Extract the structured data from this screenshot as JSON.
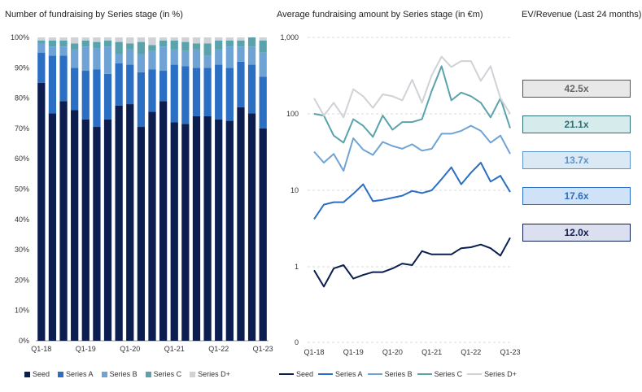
{
  "titles": {
    "left": "Number of fundraising by Series stage (in %)",
    "mid": "Average fundraising amount by Series stage (in €m)",
    "right": "EV/Revenue (Last 24 months)"
  },
  "colors": {
    "Seed": "#0b1e4f",
    "Series A": "#2a6fc4",
    "Series B": "#6fa3d6",
    "Series C": "#5aa3ad",
    "Series D+": "#cfd2d6"
  },
  "ev_revenue": [
    {
      "series": "Series D+",
      "label": "42.5x",
      "bg": "#e8e8e8",
      "fg": "#666666"
    },
    {
      "series": "Series C",
      "label": "21.1x",
      "bg": "#d6ecec",
      "fg": "#2e6e76"
    },
    {
      "series": "Series B",
      "label": "13.7x",
      "bg": "#dbe9f5",
      "fg": "#5b92c9"
    },
    {
      "series": "Series A",
      "label": "17.6x",
      "bg": "#cfe2f7",
      "fg": "#2a6fc4"
    },
    {
      "series": "Seed",
      "label": "12.0x",
      "bg": "#dcdff0",
      "fg": "#0b1e4f"
    }
  ],
  "chart_data": [
    {
      "type": "bar",
      "stacked": true,
      "title": "Number of fundraising by Series stage (in %)",
      "x_ticks": [
        "Q1-18",
        "Q1-19",
        "Q1-20",
        "Q1-21",
        "Q1-22",
        "Q1-23"
      ],
      "categories": [
        "Q1-18",
        "Q2-18",
        "Q3-18",
        "Q4-18",
        "Q1-19",
        "Q2-19",
        "Q3-19",
        "Q4-19",
        "Q1-20",
        "Q2-20",
        "Q3-20",
        "Q4-20",
        "Q1-21",
        "Q2-21",
        "Q3-21",
        "Q4-21",
        "Q1-22",
        "Q2-22",
        "Q3-22",
        "Q4-22",
        "Q1-23"
      ],
      "y_ticks": [
        "0%",
        "10%",
        "20%",
        "30%",
        "40%",
        "50%",
        "60%",
        "70%",
        "80%",
        "90%",
        "100%"
      ],
      "ylim": [
        0,
        100
      ],
      "series": [
        {
          "name": "Seed",
          "values": [
            85,
            75,
            79,
            76,
            73,
            70.5,
            73,
            77.5,
            78,
            70.5,
            75.5,
            79,
            72,
            71.5,
            74,
            74,
            73,
            72.5,
            77,
            75,
            70
          ]
        },
        {
          "name": "Series A",
          "values": [
            10,
            19,
            15,
            14,
            16,
            19,
            15,
            14,
            13,
            18,
            14,
            10,
            19,
            19,
            16,
            16,
            18,
            17.5,
            15,
            16,
            17
          ]
        },
        {
          "name": "Series B",
          "values": [
            3,
            3,
            3,
            6,
            8,
            7,
            9,
            3,
            5,
            6,
            6,
            8,
            5,
            5,
            6,
            4,
            5,
            7,
            5,
            6,
            8
          ]
        },
        {
          "name": "Series C",
          "values": [
            1,
            2,
            2,
            2,
            2,
            2,
            2,
            4,
            2,
            4,
            2,
            2,
            3,
            3,
            2,
            4,
            3,
            2,
            2,
            3,
            4
          ]
        },
        {
          "name": "Series D+",
          "values": [
            1,
            1,
            1,
            2,
            1,
            1.5,
            1,
            1.5,
            2,
            1.5,
            2.5,
            1,
            1,
            1.5,
            2,
            2,
            1,
            1,
            1,
            0,
            1
          ]
        }
      ]
    },
    {
      "type": "line",
      "title": "Average fundraising amount by Series stage (in €m)",
      "yscale": "log",
      "y_ticks": [
        "0",
        "1",
        "10",
        "100",
        "1,000"
      ],
      "x_ticks": [
        "Q1-18",
        "Q1-19",
        "Q1-20",
        "Q1-21",
        "Q1-22",
        "Q1-23"
      ],
      "categories": [
        "Q1-18",
        "Q2-18",
        "Q3-18",
        "Q4-18",
        "Q1-19",
        "Q2-19",
        "Q3-19",
        "Q4-19",
        "Q1-20",
        "Q2-20",
        "Q3-20",
        "Q4-20",
        "Q1-21",
        "Q2-21",
        "Q3-21",
        "Q4-21",
        "Q1-22",
        "Q2-22",
        "Q3-22",
        "Q4-22",
        "Q1-23"
      ],
      "series": [
        {
          "name": "Seed",
          "values": [
            0.9,
            0.55,
            0.95,
            1.05,
            0.7,
            0.78,
            0.85,
            0.85,
            0.95,
            1.1,
            1.05,
            1.6,
            1.45,
            1.45,
            1.45,
            1.75,
            1.8,
            1.95,
            1.75,
            1.4,
            2.4
          ]
        },
        {
          "name": "Series A",
          "values": [
            4.2,
            6.5,
            7,
            7,
            9,
            12,
            7.2,
            7.5,
            8,
            8.5,
            9.8,
            9.2,
            10,
            14,
            20,
            12,
            17,
            23,
            13,
            15.5,
            9.5
          ]
        },
        {
          "name": "Series B",
          "values": [
            32,
            23,
            30,
            18,
            48,
            34,
            29,
            43,
            38,
            35,
            40,
            33,
            35,
            55,
            55,
            60,
            70,
            60,
            42,
            52,
            30
          ]
        },
        {
          "name": "Series C",
          "values": [
            100,
            95,
            52,
            42,
            85,
            70,
            50,
            95,
            62,
            78,
            78,
            85,
            200,
            420,
            150,
            190,
            170,
            140,
            90,
            160,
            65
          ]
        },
        {
          "name": "Series D+",
          "values": [
            160,
            95,
            140,
            90,
            210,
            170,
            120,
            180,
            170,
            150,
            280,
            140,
            320,
            560,
            410,
            490,
            490,
            270,
            420,
            160,
            100
          ]
        }
      ]
    }
  ]
}
